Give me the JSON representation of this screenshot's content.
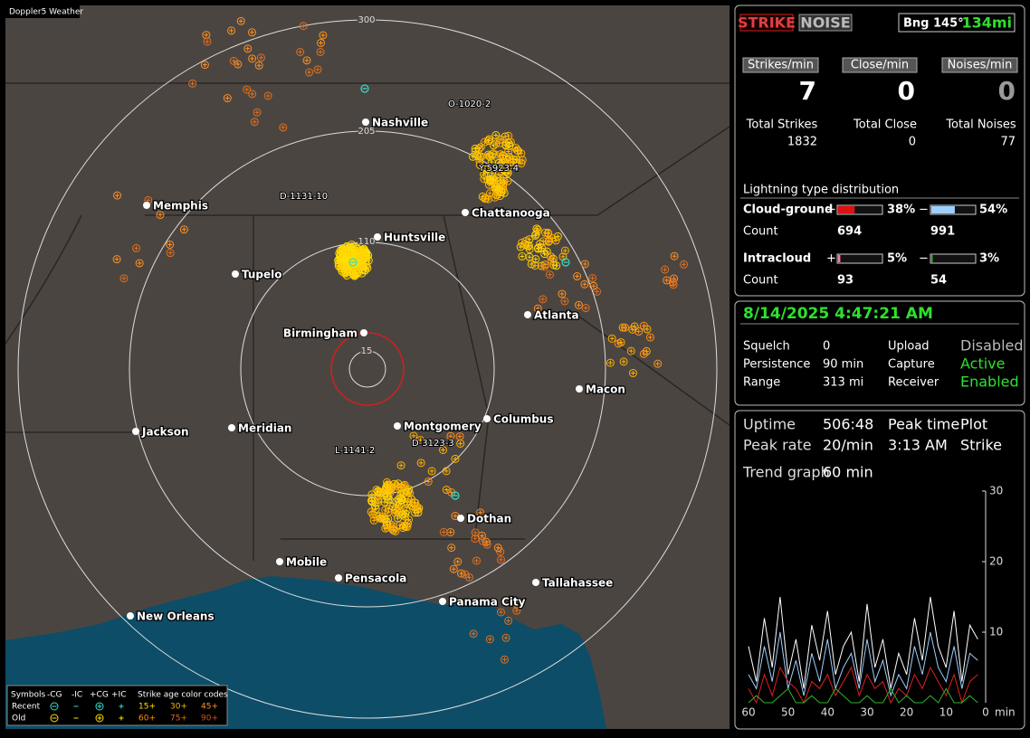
{
  "map": {
    "title": "Doppler5 Weather",
    "ring_labels": [
      "300",
      "205",
      "110",
      "15"
    ],
    "cities": [
      "Nashville",
      "Memphis",
      "Huntsville",
      "Chattanooga",
      "Tupelo",
      "Atlanta",
      "Birmingham",
      "Macon",
      "Jackson",
      "Meridian",
      "Montgomery",
      "Columbus",
      "Dothan",
      "Mobile",
      "Pensacola",
      "Tallahassee",
      "Panama City",
      "New Orleans"
    ],
    "storm_labels": [
      "O-1020-2",
      "Y-5923-4",
      "D-1131-10",
      "L-1141-2",
      "D-3123-3"
    ]
  },
  "legend": {
    "header": [
      "Symbols",
      "-CG",
      "-IC",
      "+CG",
      "+IC",
      "Strike age color codes"
    ],
    "recent": "Recent",
    "old": "Old",
    "recent_ages": [
      "15+",
      "30+",
      "45+"
    ],
    "old_ages": [
      "60+",
      "75+",
      "90+"
    ]
  },
  "controls": {
    "strike": "STRIKE",
    "noise": "NOISE",
    "bearing": "Bng 145°",
    "distance": "134mi"
  },
  "rates": {
    "labels": [
      "Strikes/min",
      "Close/min",
      "Noises/min"
    ],
    "values": [
      7,
      0,
      0
    ]
  },
  "totals": {
    "labels": [
      "Total Strikes",
      "Total Close",
      "Total Noises"
    ],
    "values": [
      1832,
      0,
      77
    ]
  },
  "distribution": {
    "title": "Lightning type distribution",
    "count_label": "Count",
    "plus": "+",
    "minus": "−",
    "rows": [
      {
        "name": "Cloud-ground",
        "positive": {
          "value": 38,
          "label": "38%"
        },
        "negative": {
          "value": 54,
          "label": "54%"
        },
        "positive_count": 694,
        "negative_count": 991
      },
      {
        "name": "Intracloud",
        "positive": {
          "value": 5,
          "label": "5%"
        },
        "negative": {
          "value": 3,
          "label": "3%"
        },
        "positive_count": 93,
        "negative_count": 54
      }
    ]
  },
  "status": {
    "datetime": "8/14/2025 4:47:21 AM",
    "rows": [
      [
        "Squelch",
        0,
        "Upload",
        "Disabled"
      ],
      [
        "Persistence",
        "90 min",
        "Capture",
        "Active"
      ],
      [
        "Range",
        "313 mi",
        "Receiver",
        "Enabled"
      ]
    ]
  },
  "stats": {
    "rows": [
      [
        "Uptime",
        "506:48",
        "Peak time",
        "Plot"
      ],
      [
        "Peak rate",
        "20/min",
        "3:13 AM",
        "Strike"
      ],
      [
        "Trend graph",
        "60 min"
      ]
    ]
  },
  "chart_data": {
    "type": "line",
    "x": [
      60,
      58,
      56,
      54,
      52,
      50,
      48,
      46,
      44,
      42,
      40,
      38,
      36,
      34,
      32,
      30,
      28,
      26,
      24,
      22,
      20,
      18,
      16,
      14,
      12,
      10,
      8,
      6,
      4,
      2
    ],
    "series": [
      {
        "color": "#ffffff",
        "values": [
          8,
          3,
          12,
          5,
          15,
          4,
          9,
          2,
          11,
          6,
          13,
          4,
          8,
          10,
          3,
          14,
          5,
          9,
          2,
          7,
          4,
          12,
          6,
          15,
          8,
          5,
          13,
          3,
          11,
          9
        ]
      },
      {
        "color": "#9ccfff",
        "values": [
          4,
          2,
          8,
          3,
          10,
          2,
          6,
          1,
          7,
          3,
          9,
          2,
          5,
          7,
          2,
          9,
          3,
          6,
          1,
          4,
          2,
          8,
          4,
          10,
          5,
          3,
          8,
          2,
          7,
          6
        ]
      },
      {
        "color": "#e02020",
        "values": [
          2,
          0,
          4,
          1,
          5,
          3,
          2,
          0,
          3,
          2,
          4,
          1,
          3,
          5,
          1,
          4,
          2,
          3,
          0,
          2,
          1,
          4,
          2,
          5,
          3,
          1,
          4,
          0,
          3,
          4
        ]
      },
      {
        "color": "#2db52d",
        "values": [
          0,
          1,
          0,
          0,
          1,
          2,
          0,
          0,
          1,
          0,
          0,
          2,
          1,
          0,
          0,
          1,
          0,
          0,
          2,
          0,
          1,
          0,
          0,
          1,
          0,
          2,
          0,
          0,
          1,
          0
        ]
      }
    ],
    "xlim": [
      60,
      0
    ],
    "ylim": [
      0,
      30
    ],
    "yticks": [
      10,
      20,
      30
    ],
    "xticks": [
      60,
      50,
      40,
      30,
      20,
      10,
      0
    ],
    "xlabel": "min"
  }
}
